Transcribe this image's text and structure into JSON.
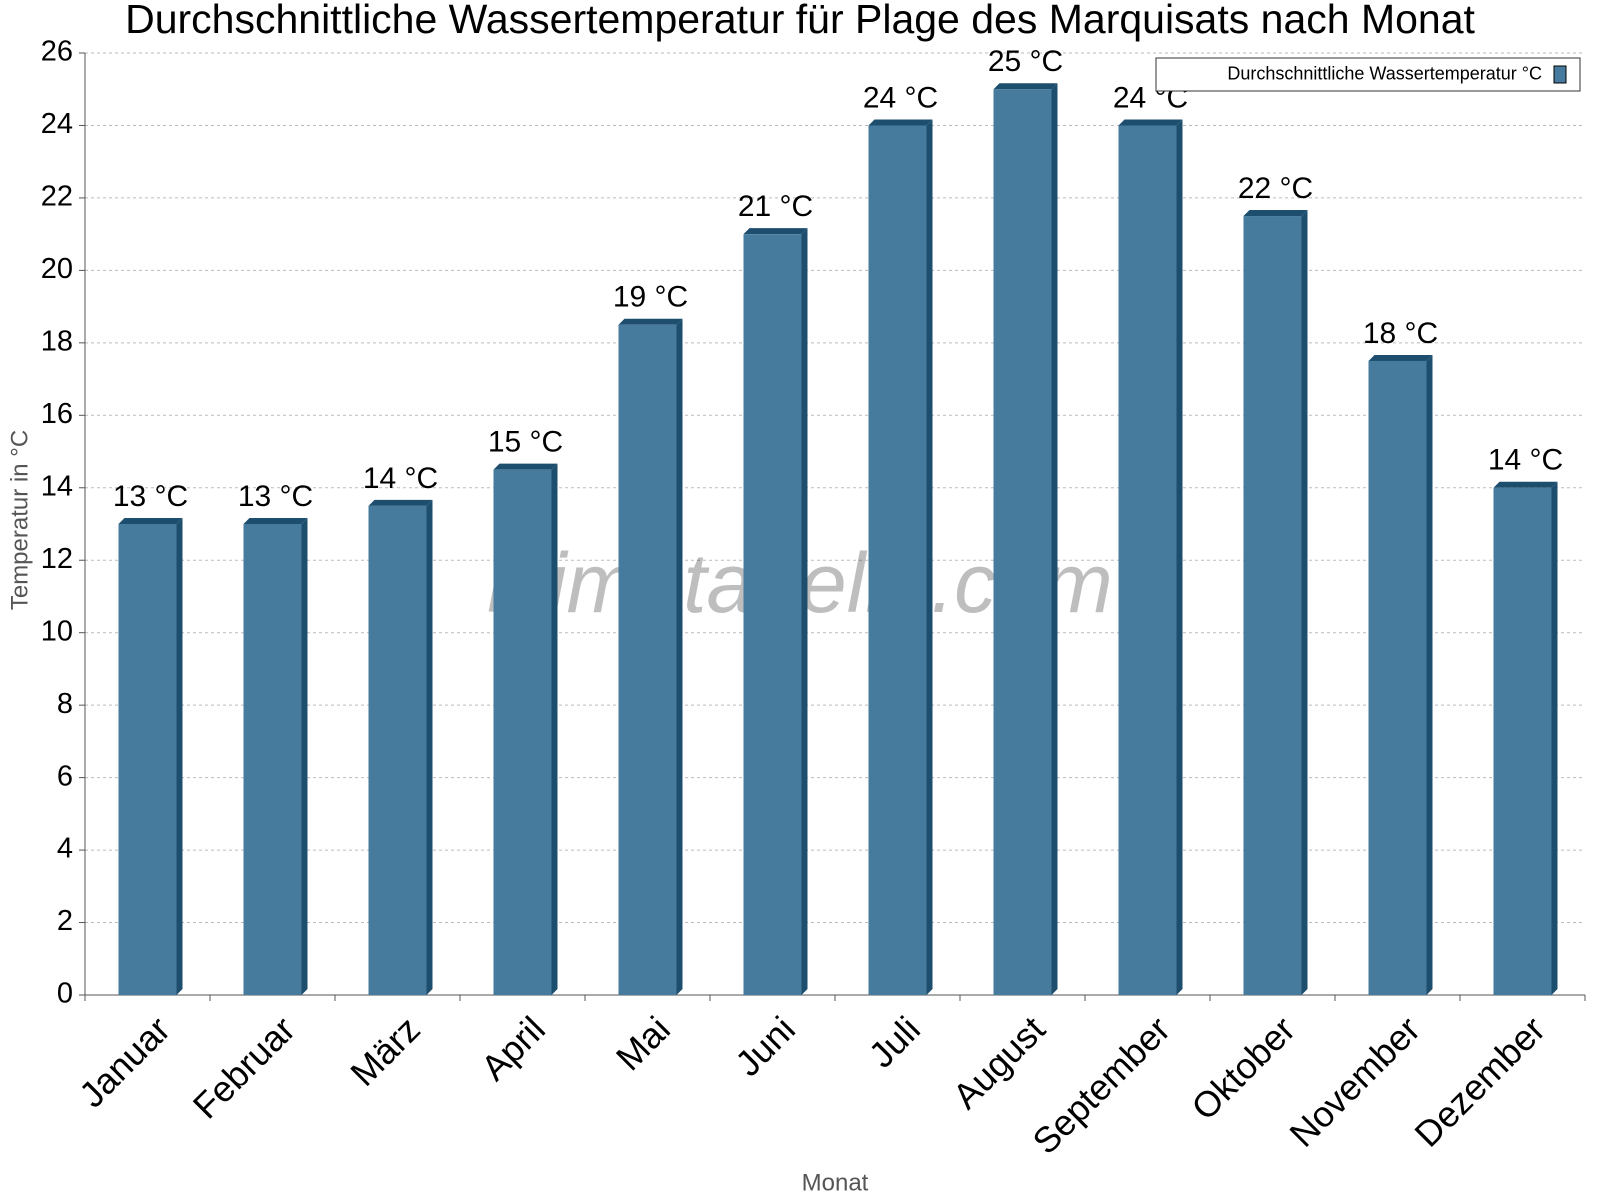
{
  "chart_data": {
    "type": "bar",
    "title": "Durchschnittliche Wassertemperatur für Plage des Marquisats nach Monat",
    "x_label": "Monat",
    "y_label": "Temperatur in °C",
    "watermark": "klimatabelle.com",
    "categories": [
      "Januar",
      "Februar",
      "März",
      "April",
      "Mai",
      "Juni",
      "Juli",
      "August",
      "September",
      "Oktober",
      "November",
      "Dezember"
    ],
    "series": [
      {
        "name": "Durchschnittliche Wassertemperatur °C",
        "color": "#467b9e",
        "values": [
          13,
          13,
          13.5,
          14.5,
          18.5,
          21,
          24,
          25,
          24,
          21.5,
          17.5,
          14
        ],
        "value_labels": [
          "13 °C",
          "13 °C",
          "14 °C",
          "15 °C",
          "19 °C",
          "21 °C",
          "24 °C",
          "25 °C",
          "24 °C",
          "22 °C",
          "18 °C",
          "14 °C"
        ]
      }
    ],
    "ylim": [
      0,
      26
    ],
    "yticks": [
      0,
      2,
      4,
      6,
      8,
      10,
      12,
      14,
      16,
      18,
      20,
      22,
      24,
      26
    ],
    "grid": true,
    "legend": "top-right"
  }
}
